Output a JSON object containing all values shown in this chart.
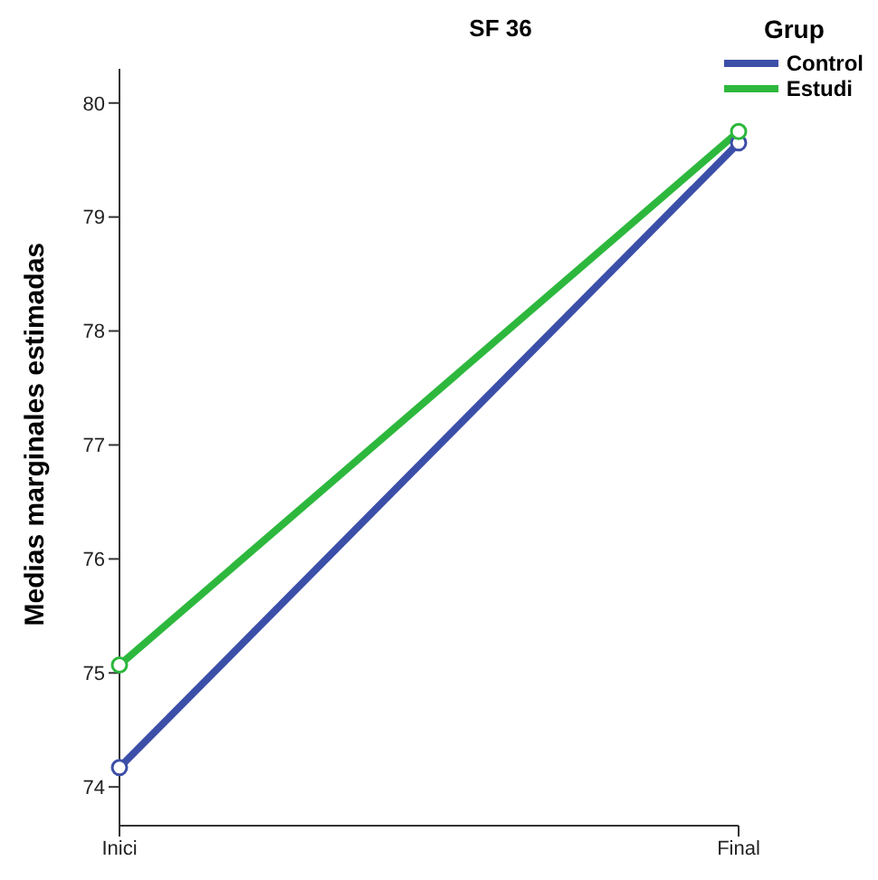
{
  "chart_data": {
    "type": "line",
    "title": "SF 36",
    "ylabel": "Medias marginales estimadas",
    "legend_title": "Grup",
    "categories": [
      "Inici",
      "Final"
    ],
    "series": [
      {
        "name": "Control",
        "color": "#3c4fa8",
        "values": [
          74.17,
          79.65
        ]
      },
      {
        "name": "Estudi",
        "color": "#2db83d",
        "values": [
          75.07,
          79.75
        ]
      }
    ],
    "ylim": [
      73.66,
      80.3
    ],
    "yticks": [
      74,
      75,
      76,
      77,
      78,
      79,
      80
    ],
    "marker": "circle",
    "legend": "top right",
    "grid": false
  }
}
